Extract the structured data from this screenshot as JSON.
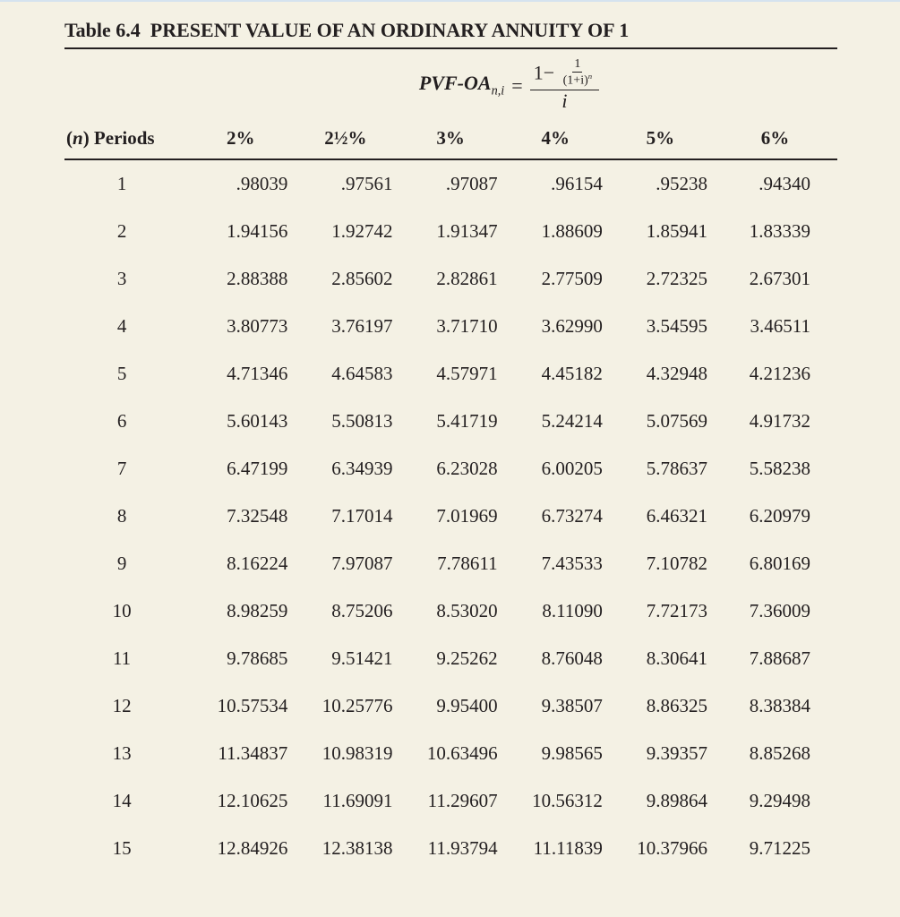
{
  "title_prefix": "Table 6.4",
  "title_main": "PRESENT VALUE OF AN ORDINARY ANNUITY OF 1",
  "formula": {
    "lhs_label": "PVF-OA",
    "lhs_sub": "n,i",
    "eq": "=",
    "one": "1",
    "minus": "−",
    "one_plus_i": "(1+",
    "i_var": "i",
    "close_paren": ")",
    "exp_n": "n",
    "denom_i": "i"
  },
  "table": {
    "type": "table",
    "background_color": "#f4f1e4",
    "text_color": "#231f20",
    "rule_color": "#231f20",
    "font_family": "Times New Roman",
    "header_fontsize": 21,
    "cell_fontsize": 21,
    "periods_header_n": "n",
    "periods_header_rest": ") Periods",
    "columns": [
      "2%",
      "2½%",
      "3%",
      "4%",
      "5%",
      "6%"
    ],
    "periods": [
      "1",
      "2",
      "3",
      "4",
      "5",
      "6",
      "7",
      "8",
      "9",
      "10",
      "11",
      "12",
      "13",
      "14",
      "15"
    ],
    "rows": [
      [
        ".98039",
        ".97561",
        ".97087",
        ".96154",
        ".95238",
        ".94340"
      ],
      [
        "1.94156",
        "1.92742",
        "1.91347",
        "1.88609",
        "1.85941",
        "1.83339"
      ],
      [
        "2.88388",
        "2.85602",
        "2.82861",
        "2.77509",
        "2.72325",
        "2.67301"
      ],
      [
        "3.80773",
        "3.76197",
        "3.71710",
        "3.62990",
        "3.54595",
        "3.46511"
      ],
      [
        "4.71346",
        "4.64583",
        "4.57971",
        "4.45182",
        "4.32948",
        "4.21236"
      ],
      [
        "5.60143",
        "5.50813",
        "5.41719",
        "5.24214",
        "5.07569",
        "4.91732"
      ],
      [
        "6.47199",
        "6.34939",
        "6.23028",
        "6.00205",
        "5.78637",
        "5.58238"
      ],
      [
        "7.32548",
        "7.17014",
        "7.01969",
        "6.73274",
        "6.46321",
        "6.20979"
      ],
      [
        "8.16224",
        "7.97087",
        "7.78611",
        "7.43533",
        "7.10782",
        "6.80169"
      ],
      [
        "8.98259",
        "8.75206",
        "8.53020",
        "8.11090",
        "7.72173",
        "7.36009"
      ],
      [
        "9.78685",
        "9.51421",
        "9.25262",
        "8.76048",
        "8.30641",
        "7.88687"
      ],
      [
        "10.57534",
        "10.25776",
        "9.95400",
        "9.38507",
        "8.86325",
        "8.38384"
      ],
      [
        "11.34837",
        "10.98319",
        "10.63496",
        "9.98565",
        "9.39357",
        "8.85268"
      ],
      [
        "12.10625",
        "11.69091",
        "11.29607",
        "10.56312",
        "9.89864",
        "9.29498"
      ],
      [
        "12.84926",
        "12.38138",
        "11.93794",
        "11.11839",
        "10.37966",
        "9.71225"
      ]
    ]
  }
}
